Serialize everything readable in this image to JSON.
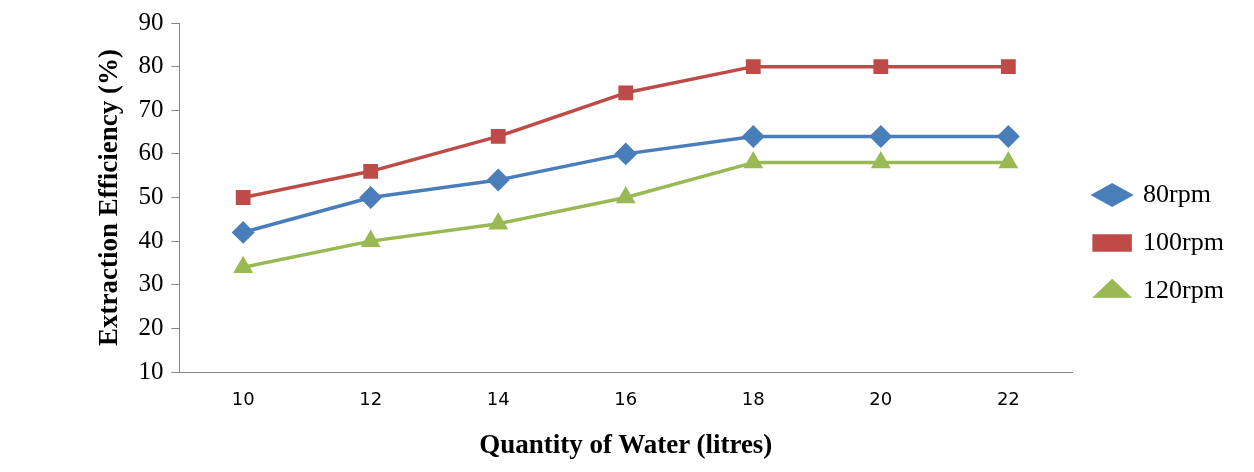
{
  "chart_data": {
    "type": "line",
    "xlabel": "Quantity of Water (litres)",
    "ylabel": "Extraction Efficiency (%)",
    "categories": [
      "10",
      "12",
      "14",
      "16",
      "18",
      "20",
      "22"
    ],
    "series": [
      {
        "name": "80rpm",
        "color": "#4a7ebb",
        "marker": "diamond",
        "values": [
          42,
          50,
          54,
          60,
          64,
          64,
          64
        ]
      },
      {
        "name": "100rpm",
        "color": "#be4b48",
        "marker": "square",
        "values": [
          50,
          56,
          64,
          74,
          80,
          80,
          80
        ]
      },
      {
        "name": "120rpm",
        "color": "#98b954",
        "marker": "triangle",
        "values": [
          34,
          40,
          44,
          50,
          58,
          58,
          58
        ]
      }
    ],
    "ylim": [
      10,
      90
    ],
    "yticks": [
      10,
      20,
      30,
      40,
      50,
      60,
      70,
      80,
      90
    ],
    "grid": false,
    "legend": "right",
    "line_style": "solid"
  }
}
